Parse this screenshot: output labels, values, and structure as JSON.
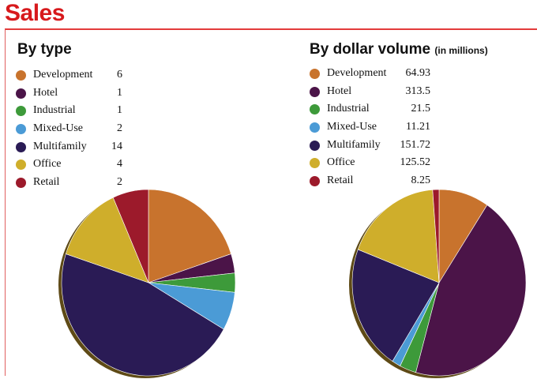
{
  "page": {
    "title": "Sales"
  },
  "colors": {
    "Development": "#c8732d",
    "Hotel": "#4b1448",
    "Industrial": "#3d9a3a",
    "Mixed-Use": "#4b9bd6",
    "Multifamily": "#2a1b55",
    "Office": "#cfae2b",
    "Retail": "#9c1a2b"
  },
  "chart_data": [
    {
      "type": "pie",
      "title": "By type",
      "subtitle": "",
      "legend": [
        "Development",
        "Hotel",
        "Industrial",
        "Mixed-Use",
        "Multifamily",
        "Office",
        "Retail"
      ],
      "value_labels": [
        "6",
        "1",
        "1",
        "2",
        "14",
        "4",
        "2"
      ],
      "values": [
        6,
        1,
        1,
        2,
        14,
        4,
        2
      ]
    },
    {
      "type": "pie",
      "title": "By dollar volume",
      "subtitle": "(in millions)",
      "legend": [
        "Development",
        "Hotel",
        "Industrial",
        "Mixed-Use",
        "Multifamily",
        "Office",
        "Retail"
      ],
      "value_labels": [
        "64.93",
        "313.5",
        "21.5",
        "11.21",
        "151.72",
        "125.52",
        "8.25"
      ],
      "values": [
        64.93,
        313.5,
        21.5,
        11.21,
        151.72,
        125.52,
        8.25
      ]
    }
  ]
}
